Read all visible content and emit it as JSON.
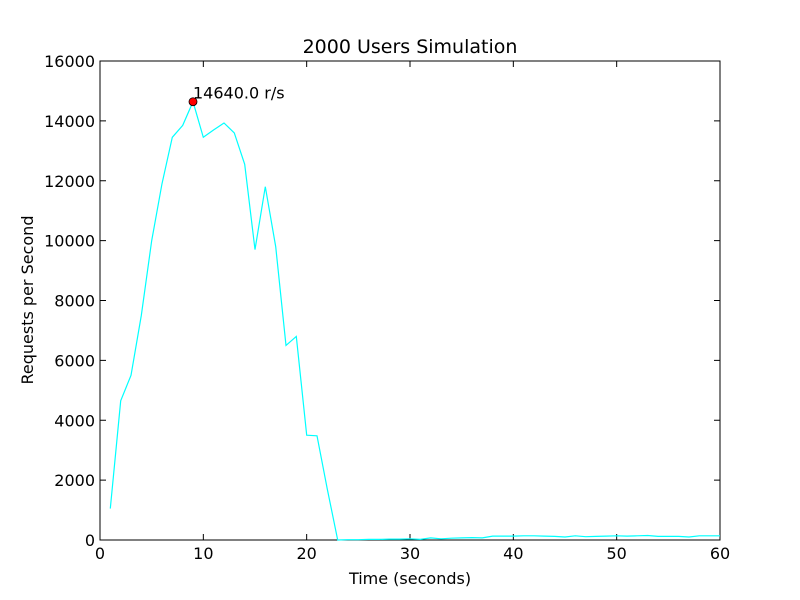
{
  "chart_data": {
    "type": "line",
    "title": "2000 Users Simulation",
    "xlabel": "Time (seconds)",
    "ylabel": "Requests per Second",
    "xlim": [
      0,
      60
    ],
    "ylim": [
      0,
      16000
    ],
    "xticks": [
      0,
      10,
      20,
      30,
      40,
      50,
      60
    ],
    "yticks": [
      0,
      2000,
      4000,
      6000,
      8000,
      10000,
      12000,
      14000,
      16000
    ],
    "grid": false,
    "colors": {
      "line": "#00ffff",
      "marker": "#ff0000"
    },
    "series": [
      {
        "x": [
          1,
          2,
          3,
          4,
          5,
          6,
          7,
          8,
          9,
          10,
          11,
          12,
          13,
          14,
          15,
          16,
          17,
          18,
          19,
          20,
          21,
          22,
          23,
          24,
          25,
          26,
          27,
          28,
          29,
          30,
          31,
          32,
          33,
          34,
          35,
          36,
          37,
          38,
          39,
          40,
          41,
          42,
          43,
          44,
          45,
          46,
          47,
          48,
          49,
          50,
          51,
          52,
          53,
          54,
          55,
          56,
          57,
          58,
          59,
          60
        ],
        "y": [
          1050,
          4650,
          5500,
          7500,
          10000,
          11900,
          13450,
          13850,
          14640,
          13450,
          13700,
          13930,
          13600,
          12550,
          9700,
          11800,
          9800,
          6500,
          6800,
          3500,
          3480,
          1700,
          0,
          10,
          10,
          20,
          20,
          30,
          30,
          40,
          20,
          70,
          40,
          60,
          70,
          80,
          70,
          130,
          130,
          130,
          140,
          140,
          130,
          120,
          100,
          140,
          110,
          120,
          130,
          140,
          130,
          140,
          150,
          120,
          120,
          120,
          100,
          140,
          140,
          140
        ]
      }
    ],
    "annotation": {
      "x": 9,
      "y": 14640,
      "text": "14640.0 r/s"
    }
  }
}
